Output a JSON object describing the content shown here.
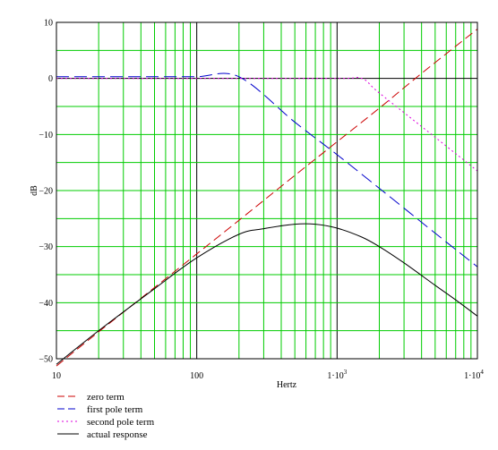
{
  "chart_data": {
    "type": "line",
    "title": "",
    "xlabel": "Hertz",
    "ylabel": "dB",
    "xscale": "log",
    "xlim": [
      10,
      10000
    ],
    "ylim": [
      -50,
      10
    ],
    "grid": true,
    "grid_color": "#00cc00",
    "x_ticks": [
      {
        "value": 10,
        "label": "10"
      },
      {
        "value": 100,
        "label": "100"
      },
      {
        "value": 1000,
        "label": "1·10",
        "sup": "3"
      },
      {
        "value": 10000,
        "label": "1·10",
        "sup": "4"
      }
    ],
    "y_ticks": [
      {
        "value": 10,
        "label": "10"
      },
      {
        "value": 0,
        "label": "0"
      },
      {
        "value": -10,
        "label": "−10"
      },
      {
        "value": -20,
        "label": "−20"
      },
      {
        "value": -30,
        "label": "−30"
      },
      {
        "value": -40,
        "label": "−40"
      },
      {
        "value": -50,
        "label": "−50"
      }
    ],
    "legend_position": "bottom-left",
    "series": [
      {
        "name": "zero term",
        "color": "#cc0000",
        "dash": "10,5",
        "x": [
          10,
          20,
          50,
          100,
          200,
          500,
          1000,
          2000,
          4000,
          10000
        ],
        "y": [
          -51.3,
          -45.2,
          -37.3,
          -31.3,
          -25.3,
          -17.3,
          -11.3,
          -5.3,
          0.9,
          8.8
        ]
      },
      {
        "name": "first pole term",
        "color": "#0000cc",
        "dash": "14,6",
        "x": [
          10,
          50,
          100,
          200,
          500,
          1000,
          2000,
          5000,
          10000
        ],
        "y": [
          0.3,
          0.3,
          0.3,
          0.3,
          -7.8,
          -13.6,
          -19.6,
          -27.6,
          -33.6
        ]
      },
      {
        "name": "second pole term",
        "color": "#dd00dd",
        "dash": "2,3",
        "x": [
          10,
          100,
          1000,
          1500,
          2000,
          5000,
          10000
        ],
        "y": [
          0,
          0,
          0,
          0,
          -2.6,
          -10.5,
          -16.5
        ]
      },
      {
        "name": "actual response",
        "color": "#000000",
        "dash": "",
        "x": [
          10,
          20,
          50,
          100,
          200,
          300,
          500,
          700,
          1000,
          1500,
          2000,
          3000,
          5000,
          7000,
          10000
        ],
        "y": [
          -51.0,
          -45.0,
          -37.5,
          -32.0,
          -27.8,
          -26.8,
          -26.0,
          -26.0,
          -26.7,
          -28.3,
          -30.0,
          -32.9,
          -36.9,
          -39.5,
          -42.4
        ]
      }
    ]
  }
}
